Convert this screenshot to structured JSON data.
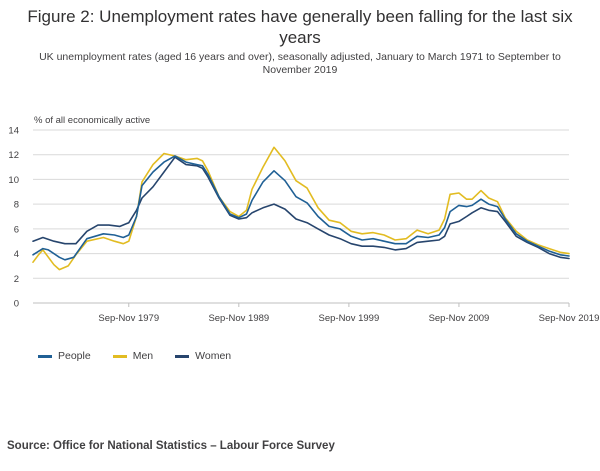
{
  "title": "Figure 2: Unemployment rates have generally been falling for the last six years",
  "subtitle": "UK unemployment rates (aged 16 years and over), seasonally adjusted, January to March 1971 to September to November 2019",
  "source": "Source: Office for National Statistics – Labour Force Survey",
  "colors": {
    "people": "#206095",
    "men": "#E2BC22",
    "women": "#27456D",
    "grid": "#D9D9D9",
    "axis": "#BFBFBF"
  },
  "chart_data": {
    "type": "line",
    "ylabel": "% of all economically active",
    "xlabel": "",
    "ylim": [
      0,
      14
    ],
    "yticks": [
      0,
      2,
      4,
      6,
      8,
      10,
      12,
      14
    ],
    "xlim": [
      1971.1,
      2019.8
    ],
    "xticks": [
      {
        "x": 1979.8,
        "label": "Sep-Nov 1979"
      },
      {
        "x": 1989.8,
        "label": "Sep-Nov 1989"
      },
      {
        "x": 1999.8,
        "label": "Sep-Nov 1999"
      },
      {
        "x": 2009.8,
        "label": "Sep-Nov 2009"
      },
      {
        "x": 2019.8,
        "label": "Sep-Nov 2019"
      }
    ],
    "grid": true,
    "legend": "bottom-left",
    "series": [
      {
        "name": "People",
        "key": "people",
        "points": [
          [
            1971.1,
            3.9
          ],
          [
            1972.0,
            4.4
          ],
          [
            1972.5,
            4.3
          ],
          [
            1973.5,
            3.7
          ],
          [
            1974.0,
            3.5
          ],
          [
            1974.8,
            3.7
          ],
          [
            1976.0,
            5.2
          ],
          [
            1977.5,
            5.6
          ],
          [
            1978.5,
            5.5
          ],
          [
            1979.3,
            5.3
          ],
          [
            1979.8,
            5.5
          ],
          [
            1980.5,
            7.0
          ],
          [
            1981.0,
            9.5
          ],
          [
            1982.0,
            10.6
          ],
          [
            1983.0,
            11.4
          ],
          [
            1984.0,
            11.9
          ],
          [
            1985.0,
            11.4
          ],
          [
            1986.0,
            11.2
          ],
          [
            1986.5,
            11.1
          ],
          [
            1987.0,
            10.4
          ],
          [
            1988.0,
            8.6
          ],
          [
            1989.0,
            7.2
          ],
          [
            1989.8,
            6.9
          ],
          [
            1990.5,
            7.2
          ],
          [
            1991.0,
            8.3
          ],
          [
            1992.0,
            9.8
          ],
          [
            1993.0,
            10.7
          ],
          [
            1994.0,
            9.9
          ],
          [
            1995.0,
            8.6
          ],
          [
            1996.0,
            8.1
          ],
          [
            1997.0,
            7.0
          ],
          [
            1998.0,
            6.2
          ],
          [
            1999.0,
            6.0
          ],
          [
            2000.0,
            5.4
          ],
          [
            2001.0,
            5.1
          ],
          [
            2002.0,
            5.2
          ],
          [
            2003.0,
            5.0
          ],
          [
            2004.0,
            4.8
          ],
          [
            2005.0,
            4.8
          ],
          [
            2006.0,
            5.4
          ],
          [
            2007.0,
            5.3
          ],
          [
            2008.0,
            5.5
          ],
          [
            2008.5,
            6.1
          ],
          [
            2009.0,
            7.4
          ],
          [
            2009.8,
            7.9
          ],
          [
            2010.5,
            7.8
          ],
          [
            2011.0,
            7.9
          ],
          [
            2011.8,
            8.4
          ],
          [
            2012.5,
            8.0
          ],
          [
            2013.3,
            7.8
          ],
          [
            2014.0,
            6.8
          ],
          [
            2015.0,
            5.6
          ],
          [
            2016.0,
            5.0
          ],
          [
            2017.0,
            4.6
          ],
          [
            2018.0,
            4.2
          ],
          [
            2019.0,
            3.9
          ],
          [
            2019.8,
            3.8
          ]
        ]
      },
      {
        "name": "Men",
        "key": "men",
        "points": [
          [
            1971.1,
            3.3
          ],
          [
            1971.6,
            3.9
          ],
          [
            1972.0,
            4.3
          ],
          [
            1973.0,
            3.1
          ],
          [
            1973.5,
            2.7
          ],
          [
            1974.3,
            3.0
          ],
          [
            1975.0,
            3.9
          ],
          [
            1976.0,
            5.0
          ],
          [
            1977.5,
            5.3
          ],
          [
            1978.5,
            5.0
          ],
          [
            1979.3,
            4.8
          ],
          [
            1979.8,
            5.0
          ],
          [
            1980.5,
            7.0
          ],
          [
            1981.0,
            9.8
          ],
          [
            1982.0,
            11.2
          ],
          [
            1983.0,
            12.1
          ],
          [
            1984.0,
            11.9
          ],
          [
            1985.0,
            11.6
          ],
          [
            1986.0,
            11.7
          ],
          [
            1986.5,
            11.5
          ],
          [
            1987.0,
            10.7
          ],
          [
            1988.0,
            8.6
          ],
          [
            1989.0,
            7.4
          ],
          [
            1989.8,
            7.0
          ],
          [
            1990.5,
            7.5
          ],
          [
            1991.0,
            9.2
          ],
          [
            1992.0,
            11.0
          ],
          [
            1993.0,
            12.6
          ],
          [
            1994.0,
            11.5
          ],
          [
            1995.0,
            9.9
          ],
          [
            1996.0,
            9.3
          ],
          [
            1997.0,
            7.7
          ],
          [
            1998.0,
            6.7
          ],
          [
            1999.0,
            6.5
          ],
          [
            2000.0,
            5.8
          ],
          [
            2001.0,
            5.6
          ],
          [
            2002.0,
            5.7
          ],
          [
            2003.0,
            5.5
          ],
          [
            2004.0,
            5.1
          ],
          [
            2005.0,
            5.2
          ],
          [
            2006.0,
            5.9
          ],
          [
            2007.0,
            5.6
          ],
          [
            2008.0,
            5.9
          ],
          [
            2008.5,
            6.8
          ],
          [
            2009.0,
            8.8
          ],
          [
            2009.8,
            8.9
          ],
          [
            2010.5,
            8.4
          ],
          [
            2011.0,
            8.4
          ],
          [
            2011.8,
            9.1
          ],
          [
            2012.5,
            8.5
          ],
          [
            2013.3,
            8.2
          ],
          [
            2014.0,
            6.9
          ],
          [
            2015.0,
            5.8
          ],
          [
            2016.0,
            5.1
          ],
          [
            2017.0,
            4.7
          ],
          [
            2018.0,
            4.4
          ],
          [
            2019.0,
            4.1
          ],
          [
            2019.8,
            4.0
          ]
        ]
      },
      {
        "name": "Women",
        "key": "women",
        "points": [
          [
            1971.1,
            5.0
          ],
          [
            1972.0,
            5.3
          ],
          [
            1973.0,
            5.0
          ],
          [
            1974.0,
            4.8
          ],
          [
            1975.0,
            4.8
          ],
          [
            1976.0,
            5.8
          ],
          [
            1977.0,
            6.3
          ],
          [
            1978.0,
            6.3
          ],
          [
            1979.0,
            6.2
          ],
          [
            1979.8,
            6.5
          ],
          [
            1980.5,
            7.5
          ],
          [
            1981.0,
            8.5
          ],
          [
            1982.0,
            9.4
          ],
          [
            1983.0,
            10.6
          ],
          [
            1984.0,
            11.8
          ],
          [
            1985.0,
            11.2
          ],
          [
            1986.0,
            11.1
          ],
          [
            1986.5,
            10.9
          ],
          [
            1987.0,
            10.2
          ],
          [
            1988.0,
            8.5
          ],
          [
            1989.0,
            7.1
          ],
          [
            1989.8,
            6.8
          ],
          [
            1990.5,
            6.9
          ],
          [
            1991.0,
            7.3
          ],
          [
            1992.0,
            7.7
          ],
          [
            1993.0,
            8.0
          ],
          [
            1994.0,
            7.6
          ],
          [
            1995.0,
            6.8
          ],
          [
            1996.0,
            6.5
          ],
          [
            1997.0,
            6.0
          ],
          [
            1998.0,
            5.5
          ],
          [
            1999.0,
            5.2
          ],
          [
            2000.0,
            4.8
          ],
          [
            2001.0,
            4.6
          ],
          [
            2002.0,
            4.6
          ],
          [
            2003.0,
            4.5
          ],
          [
            2004.0,
            4.3
          ],
          [
            2005.0,
            4.4
          ],
          [
            2006.0,
            4.9
          ],
          [
            2007.0,
            5.0
          ],
          [
            2008.0,
            5.1
          ],
          [
            2008.5,
            5.4
          ],
          [
            2009.0,
            6.4
          ],
          [
            2009.8,
            6.6
          ],
          [
            2010.5,
            7.0
          ],
          [
            2011.0,
            7.3
          ],
          [
            2011.8,
            7.7
          ],
          [
            2012.5,
            7.5
          ],
          [
            2013.3,
            7.4
          ],
          [
            2014.0,
            6.6
          ],
          [
            2015.0,
            5.4
          ],
          [
            2016.0,
            4.9
          ],
          [
            2017.0,
            4.5
          ],
          [
            2018.0,
            4.0
          ],
          [
            2019.0,
            3.7
          ],
          [
            2019.8,
            3.6
          ]
        ]
      }
    ]
  }
}
